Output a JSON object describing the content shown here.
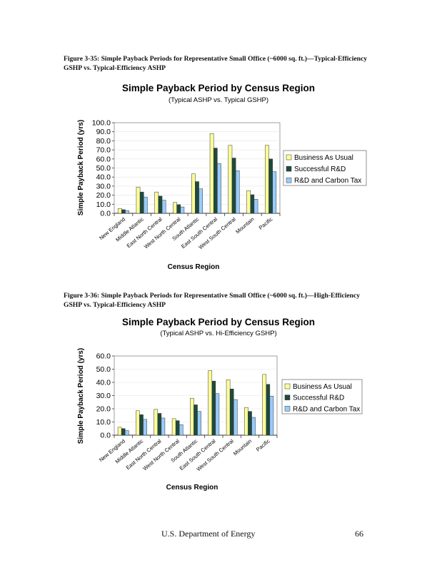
{
  "captions": [
    "Figure 3-35: Simple Payback Periods for Representative Small Office (~6000 sq. ft.)—Typical-Efficiency GSHP vs. Typical-Efficiency ASHP",
    "Figure 3-36:  Simple Payback Periods for Representative Small Office (~6000 sq. ft.)—High-Efficiency GSHP vs. Typical-Efficiency ASHP"
  ],
  "footer": {
    "org": "U.S. Department of Energy",
    "page": "66"
  },
  "colors": {
    "Business As Usual": "#ffff99",
    "Successful R&D": "#1f4a3c",
    "R&D and Carbon Tax": "#99ccff"
  },
  "chart_data": [
    {
      "type": "bar",
      "title": "Simple Payback Period by Census Region",
      "subtitle": "(Typical ASHP vs. Typical GSHP)",
      "xlabel": "Census Region",
      "ylabel": "Simple Payback Period (yrs)",
      "ylim": [
        0,
        100
      ],
      "yticks": [
        "0.0",
        "10.0",
        "20.0",
        "30.0",
        "40.0",
        "50.0",
        "60.0",
        "70.0",
        "80.0",
        "90.0",
        "100.0"
      ],
      "legend_position": "right",
      "categories": [
        "New England",
        "Middle Atlantic",
        "East North Central",
        "West North Central",
        "South Atlantic",
        "East South Central",
        "West South Central",
        "Mountain",
        "Pacific"
      ],
      "series": [
        {
          "name": "Business As Usual",
          "values": [
            5.3,
            29,
            23.5,
            12,
            43.5,
            88,
            75,
            25,
            75
          ]
        },
        {
          "name": "Successful R&D",
          "values": [
            4,
            23.5,
            19,
            9.5,
            35,
            72,
            61,
            20.5,
            60
          ]
        },
        {
          "name": "R&D and Carbon Tax",
          "values": [
            3,
            18,
            14.5,
            7,
            27,
            55,
            47,
            15.5,
            46
          ]
        }
      ]
    },
    {
      "type": "bar",
      "title": "Simple Payback Period by Census Region",
      "subtitle": "(Typical ASHP vs. Hi-Efficiency GSHP)",
      "xlabel": "Census Region",
      "ylabel": "Simple Payback Period (yrs)",
      "ylim": [
        0,
        60
      ],
      "yticks": [
        "0.0",
        "10.0",
        "20.0",
        "30.0",
        "40.0",
        "50.0",
        "60.0"
      ],
      "legend_position": "right",
      "categories": [
        "New England",
        "Middle Atlantic",
        "East North Central",
        "West North Central",
        "South Atlantic",
        "East South Central",
        "West South Central",
        "Mountain",
        "Pacific"
      ],
      "series": [
        {
          "name": "Business As Usual",
          "values": [
            6,
            18.5,
            19.5,
            12.5,
            28,
            49,
            42,
            21,
            46
          ]
        },
        {
          "name": "Successful R&D",
          "values": [
            5,
            15.5,
            16.5,
            11,
            23,
            41,
            35,
            18,
            38.5
          ]
        },
        {
          "name": "R&D and Carbon Tax",
          "values": [
            3.5,
            12,
            13,
            8,
            18,
            31.5,
            27,
            13.5,
            29.5
          ]
        }
      ]
    }
  ]
}
